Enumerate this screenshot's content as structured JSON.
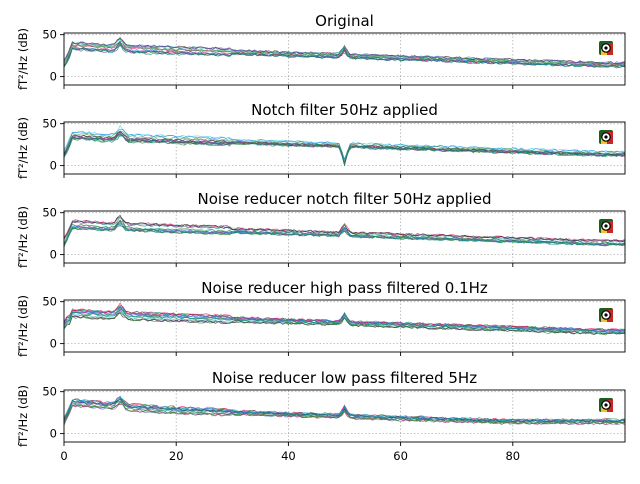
{
  "chart_data": [
    {
      "type": "line",
      "title": "Original",
      "xlabel": "",
      "ylabel": "fT²/Hz (dB)",
      "xlim": [
        0,
        100
      ],
      "ylim": [
        -10,
        52
      ],
      "xticks": [
        0,
        20,
        40,
        60,
        80
      ],
      "yticks": [
        0,
        50
      ],
      "x_ticklabels_visible": false,
      "grid": true,
      "legend": "none",
      "notch_at_50": false,
      "bump_at_50": true,
      "highpass": false,
      "lowpass": false
    },
    {
      "type": "line",
      "title": "Notch filter 50Hz applied",
      "xlabel": "",
      "ylabel": "fT²/Hz (dB)",
      "xlim": [
        0,
        100
      ],
      "ylim": [
        -10,
        52
      ],
      "xticks": [
        0,
        20,
        40,
        60,
        80
      ],
      "yticks": [
        0,
        50
      ],
      "x_ticklabels_visible": false,
      "grid": true,
      "legend": "none",
      "notch_at_50": true,
      "bump_at_50": false,
      "highpass": false,
      "lowpass": false
    },
    {
      "type": "line",
      "title": "Noise reducer notch filter 50Hz applied",
      "xlabel": "",
      "ylabel": "fT²/Hz (dB)",
      "xlim": [
        0,
        100
      ],
      "ylim": [
        -10,
        52
      ],
      "xticks": [
        0,
        20,
        40,
        60,
        80
      ],
      "yticks": [
        0,
        50
      ],
      "x_ticklabels_visible": false,
      "grid": true,
      "legend": "none",
      "notch_at_50": false,
      "bump_at_50": true,
      "highpass": false,
      "lowpass": false
    },
    {
      "type": "line",
      "title": "Noise reducer high pass filtered 0.1Hz",
      "xlabel": "",
      "ylabel": "fT²/Hz (dB)",
      "xlim": [
        0,
        100
      ],
      "ylim": [
        -10,
        52
      ],
      "xticks": [
        0,
        20,
        40,
        60,
        80
      ],
      "yticks": [
        0,
        50
      ],
      "x_ticklabels_visible": false,
      "grid": true,
      "legend": "none",
      "notch_at_50": false,
      "bump_at_50": true,
      "highpass": true,
      "lowpass": false
    },
    {
      "type": "line",
      "title": "Noise reducer low pass filtered 5Hz",
      "xlabel": "",
      "ylabel": "fT²/Hz (dB)",
      "xlim": [
        0,
        100
      ],
      "ylim": [
        -10,
        52
      ],
      "xticks": [
        0,
        20,
        40,
        60,
        80
      ],
      "yticks": [
        0,
        50
      ],
      "x_ticklabels_visible": true,
      "grid": true,
      "legend": "none",
      "notch_at_50": false,
      "bump_at_50": true,
      "highpass": false,
      "lowpass": true
    }
  ],
  "colors": {
    "channels": [
      "#2e7d32",
      "#00897b",
      "#6a1b9a",
      "#e91e63",
      "#5c6bc0",
      "#4dd0e1",
      "#80cbc4",
      "#3e2723",
      "#c2185b",
      "#7e57c2",
      "#1e88e5",
      "#43a047"
    ],
    "grid": "#b0b0b0"
  },
  "sensor_icon": "sensor-layout-icon"
}
